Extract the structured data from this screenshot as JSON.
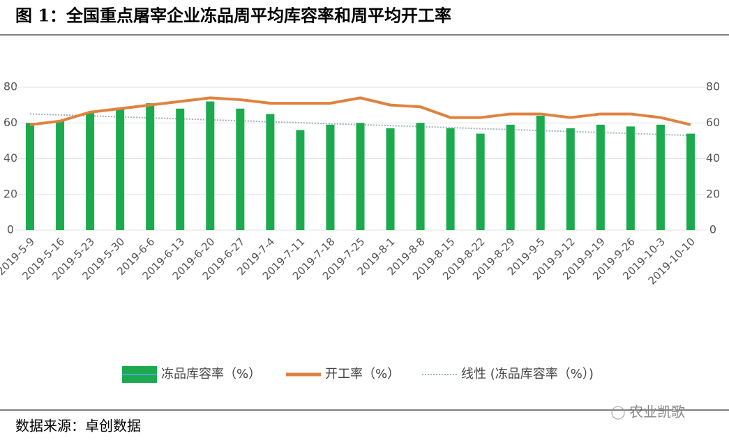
{
  "header": {
    "title": "图 1：全国重点屠宰企业冻品周平均库容率和周平均开工率"
  },
  "chart_data": {
    "type": "bar",
    "categories": [
      "2019-5-9",
      "2019-5-16",
      "2019-5-23",
      "2019-5-30",
      "2019-6-6",
      "2019-6-13",
      "2019-6-20",
      "2019-6-27",
      "2019-7-4",
      "2019-7-11",
      "2019-7-18",
      "2019-7-25",
      "2019-8-1",
      "2019-8-8",
      "2019-8-15",
      "2019-8-22",
      "2019-8-29",
      "2019-9-5",
      "2019-9-12",
      "2019-9-19",
      "2019-9-26",
      "2019-10-3",
      "2019-10-10"
    ],
    "series": [
      {
        "name": "冻品库容率（%）",
        "type": "bar",
        "color": "#1caa4e",
        "values": [
          60,
          61,
          66,
          68,
          71,
          68,
          72,
          68,
          65,
          56,
          59,
          60,
          57,
          60,
          57,
          54,
          59,
          64,
          57,
          59,
          58,
          59,
          54
        ]
      },
      {
        "name": "开工率（%）",
        "type": "line",
        "axis": "y2",
        "color": "#e0823f",
        "values": [
          59,
          61,
          66,
          68,
          70,
          72,
          74,
          73,
          71,
          71,
          71,
          74,
          70,
          69,
          63,
          63,
          65,
          65,
          63,
          65,
          65,
          63,
          59
        ]
      },
      {
        "name": "线性 (冻品库容率（%）)",
        "type": "line",
        "dashed": true,
        "color": "#9fb0c0",
        "values": [
          65.0,
          64.5,
          63.9,
          63.4,
          62.8,
          62.3,
          61.7,
          61.2,
          60.6,
          60.1,
          59.5,
          59.0,
          58.5,
          57.9,
          57.4,
          56.8,
          56.3,
          55.7,
          55.2,
          54.6,
          54.1,
          53.5,
          53.0
        ]
      }
    ],
    "ylim": [
      0,
      80
    ],
    "yticks": [
      0,
      20,
      40,
      60,
      80
    ],
    "y2lim": [
      0,
      80
    ],
    "y2ticks": [
      0,
      20,
      40,
      60,
      80
    ],
    "grid": true,
    "legend": "bottom"
  },
  "footer": {
    "source": "数据来源：卓创数据",
    "watermark": "农业凯歌"
  }
}
